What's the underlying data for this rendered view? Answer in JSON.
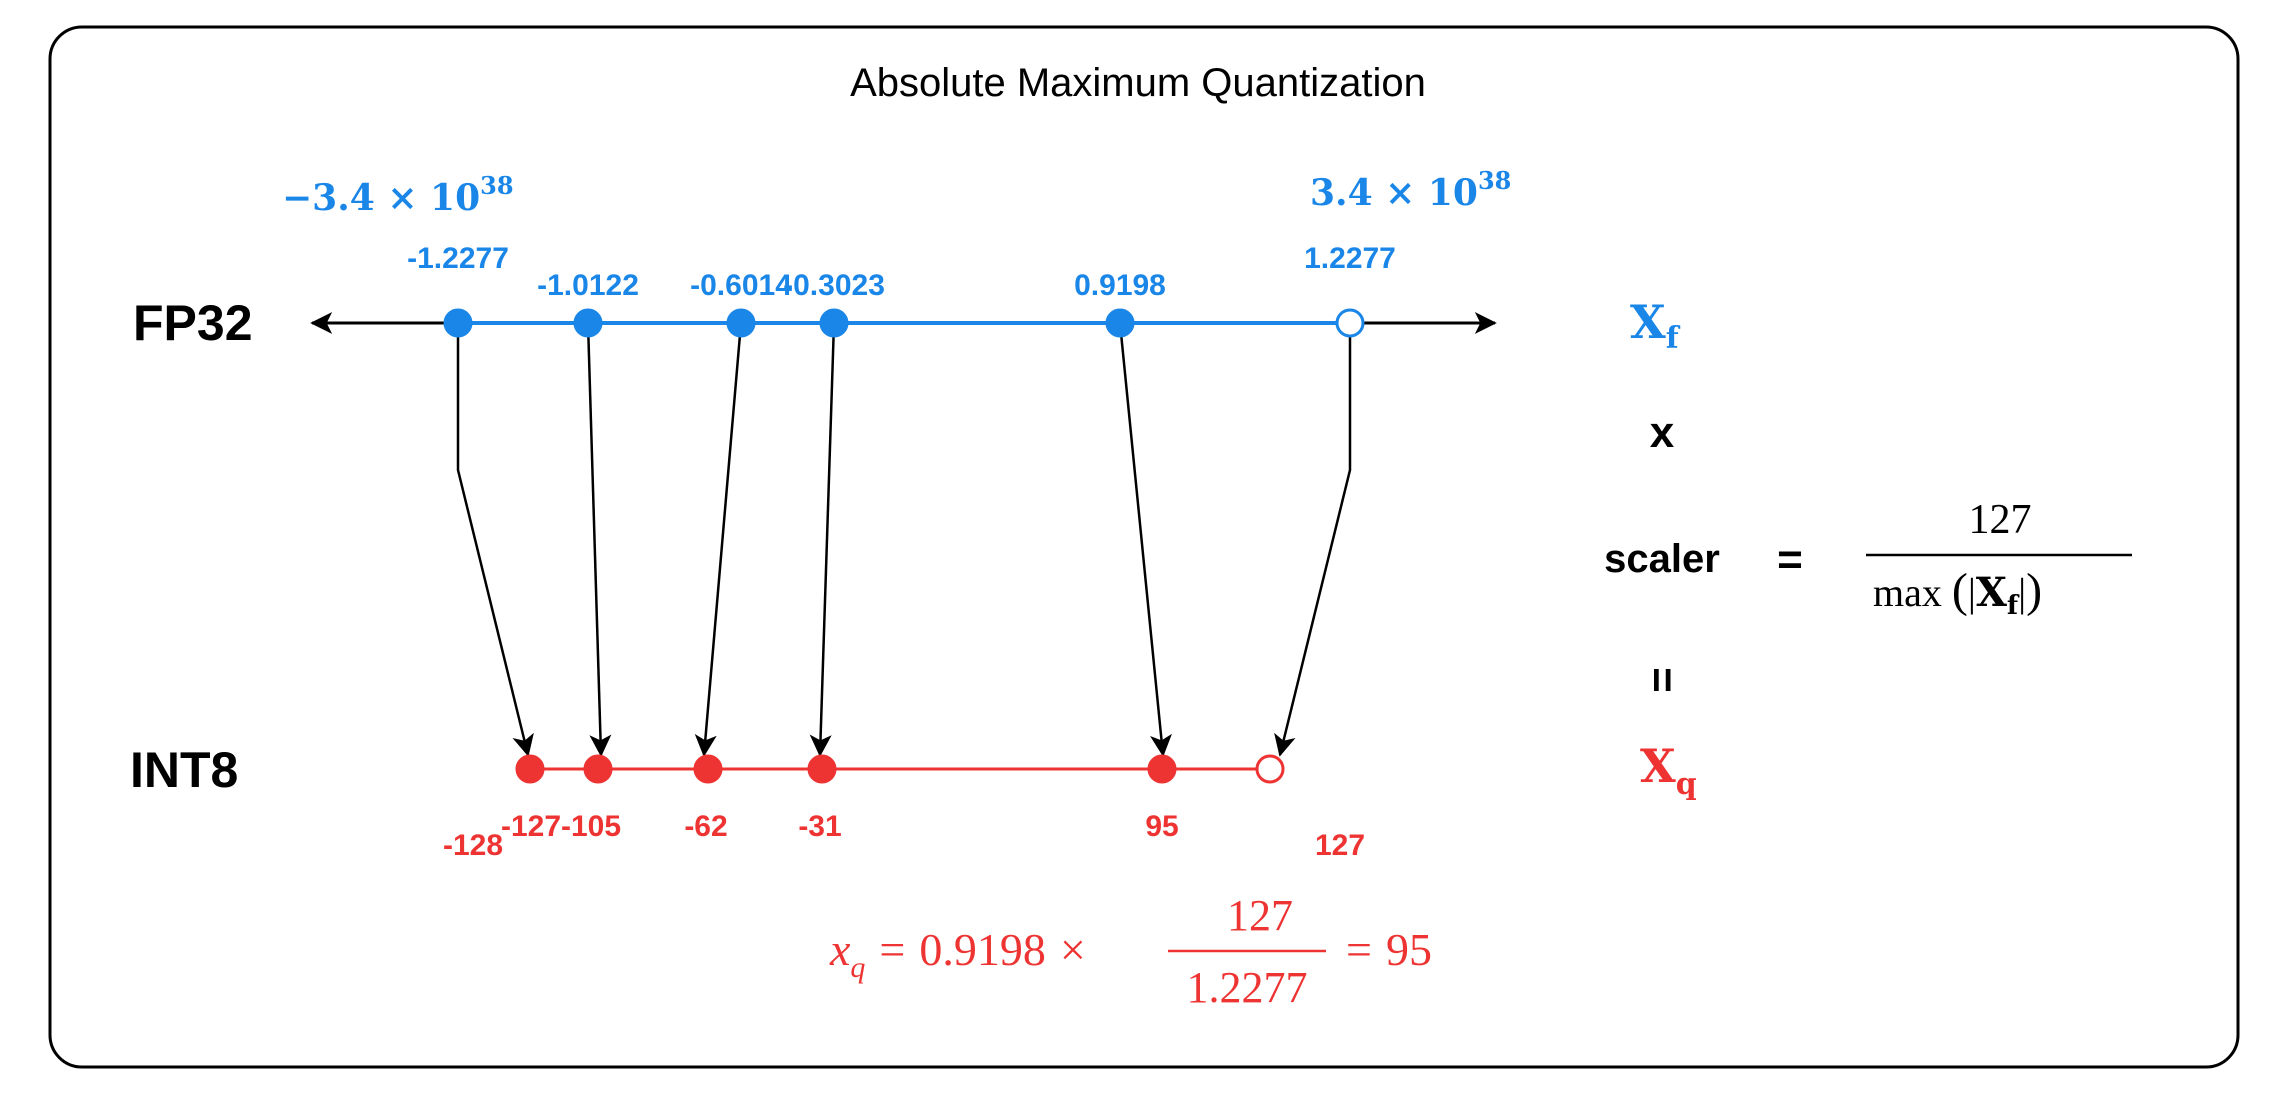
{
  "title": "Absolute Maximum Quantization",
  "rows": {
    "fp32_label": "FP32",
    "int8_label": "INT8"
  },
  "fp32_range": {
    "min_coef": "−3.4 × 10",
    "min_exp": "38",
    "max_coef": "3.4 × 10",
    "max_exp": "38"
  },
  "fp32_points": [
    {
      "label": "-1.2277",
      "value": -1.2277,
      "filled": true
    },
    {
      "label": "-1.0122",
      "value": -1.0122,
      "filled": true
    },
    {
      "label": "-0.6014",
      "value": -0.6014,
      "filled": true
    },
    {
      "label": "-0.3023",
      "value": -0.3023,
      "filled": true
    },
    {
      "label": "0.9198",
      "value": 0.9198,
      "filled": true
    },
    {
      "label": "1.2277",
      "value": 1.2277,
      "filled": false
    }
  ],
  "int8_points": [
    {
      "label": "-128",
      "value": -128,
      "filled": true
    },
    {
      "label": "-127",
      "value": -127,
      "filled": true
    },
    {
      "label": "-105",
      "value": -105,
      "filled": true
    },
    {
      "label": "-62",
      "value": -62,
      "filled": true
    },
    {
      "label": "-31",
      "value": -31,
      "filled": true
    },
    {
      "label": "95",
      "value": 95,
      "filled": true
    },
    {
      "label": "127",
      "value": 127,
      "filled": false
    }
  ],
  "mappings": [
    {
      "from": "-1.2277",
      "to": "-127"
    },
    {
      "from": "-1.0122",
      "to": "-105"
    },
    {
      "from": "-0.6014",
      "to": "-62"
    },
    {
      "from": "-0.3023",
      "to": "-31"
    },
    {
      "from": "0.9198",
      "to": "95"
    },
    {
      "from": "1.2277",
      "to": "127"
    }
  ],
  "equation": {
    "xf_letter": "X",
    "xf_sub": "f",
    "times": "x",
    "scaler": "scaler",
    "equals": "=",
    "numerator": "127",
    "denominator_prefix": "max",
    "denominator_letter": "X",
    "denominator_sub": "f",
    "result_equals": "=",
    "xq_letter": "X",
    "xq_sub": "q"
  },
  "example": {
    "var": "x",
    "sub": "q",
    "eq1": "=",
    "value": "0.9198",
    "times": "×",
    "numerator": "127",
    "denominator": "1.2277",
    "eq2": "=",
    "result": "95"
  },
  "colors": {
    "fp32": "#1a86e8",
    "int8": "#ee3333",
    "frame": "#000000"
  }
}
